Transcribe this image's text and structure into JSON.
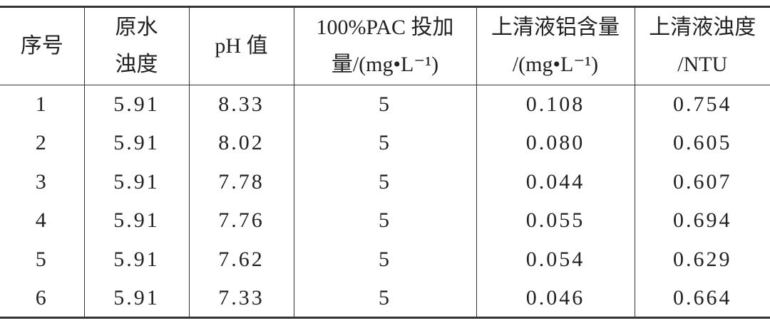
{
  "table": {
    "headers": [
      [
        "序号"
      ],
      [
        "原水",
        "浊度"
      ],
      [
        "pH 值"
      ],
      [
        "100%PAC 投加",
        "量/(mg•L⁻¹)"
      ],
      [
        "上清液铝含量",
        "/(mg•L⁻¹)"
      ],
      [
        "上清液浊度",
        "/NTU"
      ]
    ],
    "rows": [
      [
        "1",
        "5.91",
        "8.33",
        "5",
        "0.108",
        "0.754"
      ],
      [
        "2",
        "5.91",
        "8.02",
        "5",
        "0.080",
        "0.605"
      ],
      [
        "3",
        "5.91",
        "7.78",
        "5",
        "0.044",
        "0.607"
      ],
      [
        "4",
        "5.91",
        "7.76",
        "5",
        "0.055",
        "0.694"
      ],
      [
        "5",
        "5.91",
        "7.62",
        "5",
        "0.054",
        "0.629"
      ],
      [
        "6",
        "5.91",
        "7.33",
        "5",
        "0.046",
        "0.664"
      ]
    ]
  }
}
